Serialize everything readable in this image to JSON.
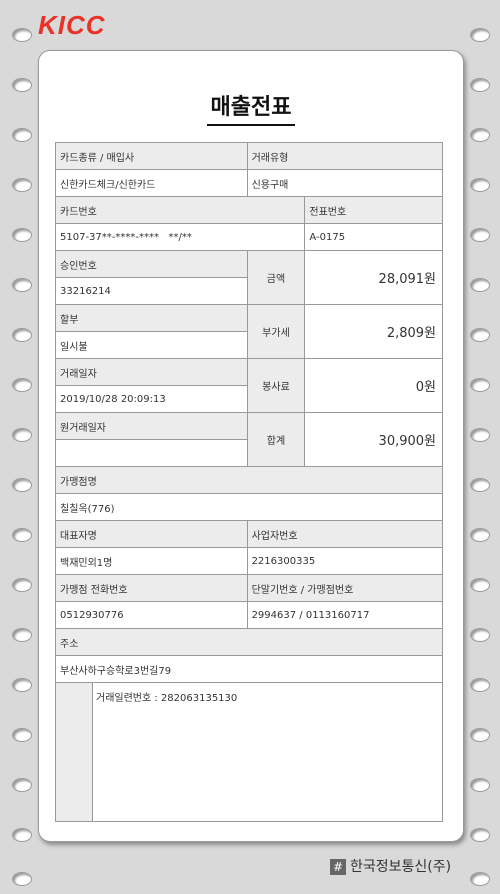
{
  "brand": {
    "logo_text": "KICC",
    "footer_text": "한국정보통신(주)",
    "footer_icon": "hash-logo-icon",
    "accent_color": "#e8322a"
  },
  "receipt": {
    "title": "매출전표",
    "card_type_label": "카드종류 / 매입사",
    "card_type_value": "신한카드체크/신한카드",
    "transaction_type_label": "거래유형",
    "transaction_type_value": "신용구매",
    "card_number_label": "카드번호",
    "card_number_value": "5107-37**-****-****   **/**",
    "slip_number_label": "전표번호",
    "slip_number_value": "A-0175",
    "approval_label": "승인번호",
    "approval_value": "33216214",
    "amount_label": "금액",
    "amount_value": "28,091원",
    "installment_label": "할부",
    "installment_value": "일시불",
    "vat_label": "부가세",
    "vat_value": "2,809원",
    "date_label": "거래일자",
    "date_value": "2019/10/28 20:09:13",
    "service_label": "봉사료",
    "service_value": "0원",
    "orig_date_label": "원거래일자",
    "orig_date_value": "",
    "total_label": "합계",
    "total_value": "30,900원",
    "merchant_label": "가맹점명",
    "merchant_value": "칠칠옥(776)",
    "rep_label": "대표자명",
    "rep_value": "백재민외1명",
    "bizno_label": "사업자번호",
    "bizno_value": "2216300335",
    "phone_label": "가맹점 전화번호",
    "phone_value": "0512930776",
    "terminal_label": "단말기번호 / 가맹점번호",
    "terminal_value": "2994637 / 0113160717",
    "address_label": "주소",
    "address_value": "부산사하구승학로3번길79",
    "serial_text": "거래일련번호 : 282063135130"
  }
}
